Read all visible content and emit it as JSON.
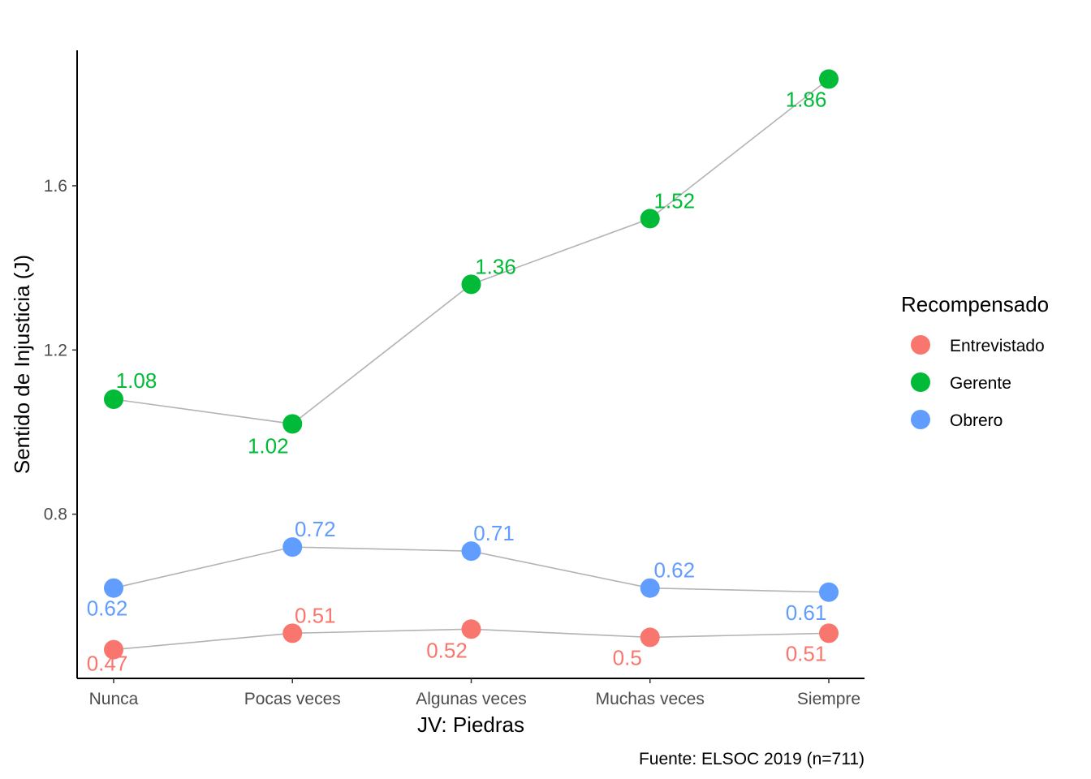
{
  "chart_data": {
    "type": "line",
    "categories": [
      "Nunca",
      "Pocas veces",
      "Algunas veces",
      "Muchas veces",
      "Siempre"
    ],
    "series": [
      {
        "name": "Entrevistado",
        "color": "#F8766D",
        "values": [
          0.47,
          0.51,
          0.52,
          0.5,
          0.51
        ]
      },
      {
        "name": "Gerente",
        "color": "#00BA38",
        "values": [
          1.08,
          1.02,
          1.36,
          1.52,
          1.86
        ]
      },
      {
        "name": "Obrero",
        "color": "#619CFF",
        "values": [
          0.62,
          0.72,
          0.71,
          0.62,
          0.61
        ]
      }
    ],
    "line_color": "#B3B3B3",
    "xlabel": "JV: Piedras",
    "ylabel": "Sentido de Injusticia (J)",
    "ylim": [
      0.4,
      1.93
    ],
    "yticks": [
      0.8,
      1.2,
      1.6
    ],
    "legend": {
      "title": "Recompensado",
      "placement": "right"
    },
    "caption": "Fuente: ELSOC 2019 (n=711)",
    "grid": false
  }
}
